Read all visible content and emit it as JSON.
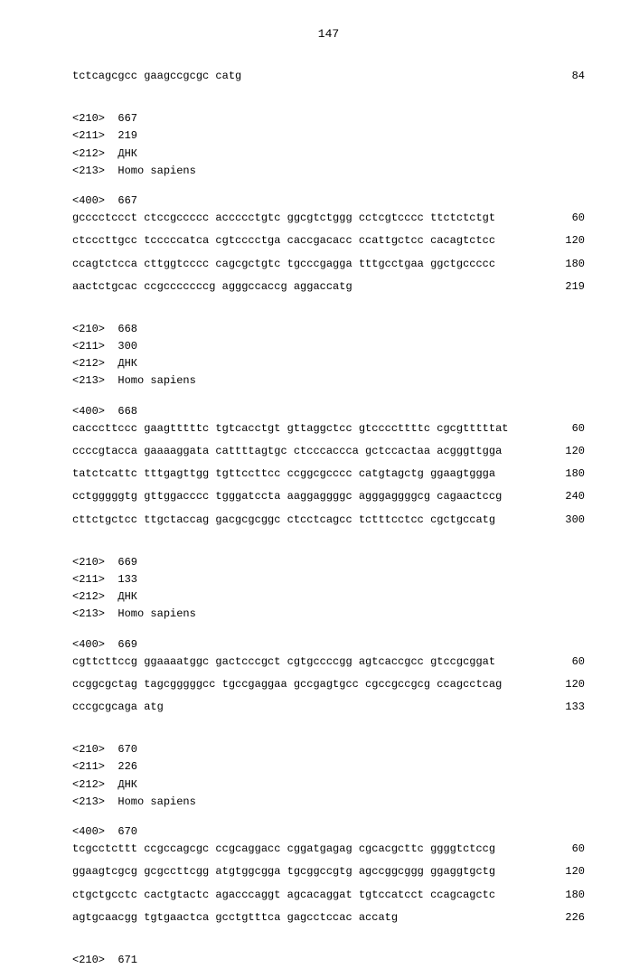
{
  "page_number": "147",
  "blocks": [
    {
      "type": "seq",
      "text": "tctcagcgcc gaagccgcgc catg",
      "num": "84"
    },
    {
      "type": "gap",
      "size": "large"
    },
    {
      "type": "meta",
      "text": "<210>  667"
    },
    {
      "type": "meta",
      "text": "<211>  219"
    },
    {
      "type": "meta",
      "text": "<212>  ДНК"
    },
    {
      "type": "meta",
      "text": "<213>  Homo sapiens"
    },
    {
      "type": "gap",
      "size": "med"
    },
    {
      "type": "meta",
      "text": "<400>  667"
    },
    {
      "type": "seq",
      "text": "gcccctccct ctccgccccc accccctgtc ggcgtctggg cctcgtcccc ttctctctgt",
      "num": "60"
    },
    {
      "type": "gap",
      "size": "small"
    },
    {
      "type": "seq",
      "text": "ctcccttgcc tcccccatca cgtcccctga caccgacacc ccattgctcc cacagtctcc",
      "num": "120"
    },
    {
      "type": "gap",
      "size": "small"
    },
    {
      "type": "seq",
      "text": "ccagtctcca cttggtcccc cagcgctgtc tgcccgagga tttgcctgaa ggctgccccc",
      "num": "180"
    },
    {
      "type": "gap",
      "size": "small"
    },
    {
      "type": "seq",
      "text": "aactctgcac ccgcccccccg agggccaccg aggaccatg",
      "num": "219"
    },
    {
      "type": "gap",
      "size": "large"
    },
    {
      "type": "meta",
      "text": "<210>  668"
    },
    {
      "type": "meta",
      "text": "<211>  300"
    },
    {
      "type": "meta",
      "text": "<212>  ДНК"
    },
    {
      "type": "meta",
      "text": "<213>  Homo sapiens"
    },
    {
      "type": "gap",
      "size": "med"
    },
    {
      "type": "meta",
      "text": "<400>  668"
    },
    {
      "type": "seq",
      "text": "cacccttccc gaagtttttc tgtcacctgt gttaggctcc gtccccttttc cgcgtttttat",
      "num": "60"
    },
    {
      "type": "gap",
      "size": "small"
    },
    {
      "type": "seq",
      "text": "ccccgtacca gaaaaggata cattttagtgc ctcccaccca gctccactaa acgggttgga",
      "num": "120"
    },
    {
      "type": "gap",
      "size": "small"
    },
    {
      "type": "seq",
      "text": "tatctcattc tttgagttgg tgttccttcc ccggcgcccc catgtagctg ggaagtggga",
      "num": "180"
    },
    {
      "type": "gap",
      "size": "small"
    },
    {
      "type": "seq",
      "text": "cctgggggtg gttggacccc tgggatccta aaggaggggc agggaggggcg cagaactccg",
      "num": "240"
    },
    {
      "type": "gap",
      "size": "small"
    },
    {
      "type": "seq",
      "text": "cttctgctcc ttgctaccag gacgcgcggc ctcctcagcc tctttcctcc cgctgccatg",
      "num": "300"
    },
    {
      "type": "gap",
      "size": "large"
    },
    {
      "type": "meta",
      "text": "<210>  669"
    },
    {
      "type": "meta",
      "text": "<211>  133"
    },
    {
      "type": "meta",
      "text": "<212>  ДНК"
    },
    {
      "type": "meta",
      "text": "<213>  Homo sapiens"
    },
    {
      "type": "gap",
      "size": "med"
    },
    {
      "type": "meta",
      "text": "<400>  669"
    },
    {
      "type": "seq",
      "text": "cgttcttccg ggaaaatggc gactcccgct cgtgccccgg agtcaccgcc gtccgcggat",
      "num": "60"
    },
    {
      "type": "gap",
      "size": "small"
    },
    {
      "type": "seq",
      "text": "ccggcgctag tagcgggggcc tgccgaggaa gccgagtgcc cgccgccgcg ccagcctcag",
      "num": "120"
    },
    {
      "type": "gap",
      "size": "small"
    },
    {
      "type": "seq",
      "text": "cccgcgcaga atg",
      "num": "133"
    },
    {
      "type": "gap",
      "size": "large"
    },
    {
      "type": "meta",
      "text": "<210>  670"
    },
    {
      "type": "meta",
      "text": "<211>  226"
    },
    {
      "type": "meta",
      "text": "<212>  ДНК"
    },
    {
      "type": "meta",
      "text": "<213>  Homo sapiens"
    },
    {
      "type": "gap",
      "size": "med"
    },
    {
      "type": "meta",
      "text": "<400>  670"
    },
    {
      "type": "seq",
      "text": "tcgcctcttt ccgccagcgc ccgcaggacc cggatgagag cgcacgcttc ggggtctccg",
      "num": "60"
    },
    {
      "type": "gap",
      "size": "small"
    },
    {
      "type": "seq",
      "text": "ggaagtcgcg gcgccttcgg atgtggcgga tgcggccgtg agccggcggg ggaggtgctg",
      "num": "120"
    },
    {
      "type": "gap",
      "size": "small"
    },
    {
      "type": "seq",
      "text": "ctgctgcctc cactgtactc agacccaggt agcacaggat tgtccatcct ccagcagctc",
      "num": "180"
    },
    {
      "type": "gap",
      "size": "small"
    },
    {
      "type": "seq",
      "text": "agtgcaacgg tgtgaactca gcctgtttca gagcctccac accatg",
      "num": "226"
    },
    {
      "type": "gap",
      "size": "large"
    },
    {
      "type": "meta",
      "text": "<210>  671"
    }
  ]
}
